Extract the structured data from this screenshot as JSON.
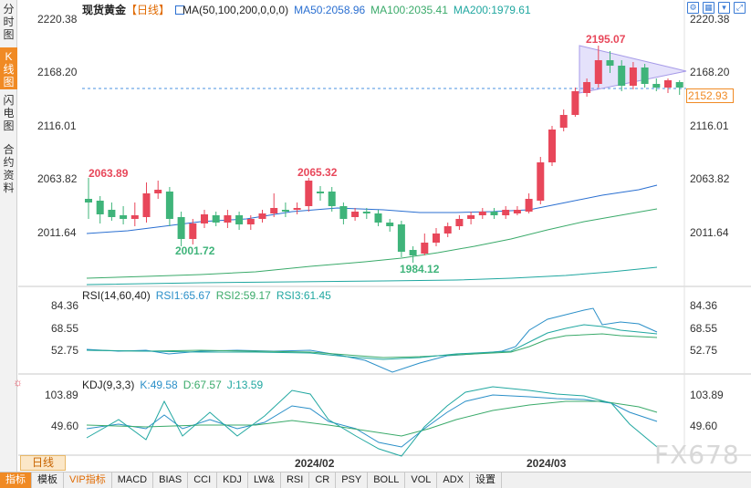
{
  "side_tabs": [
    "分时图",
    "K线图",
    "闪电图",
    "合约资料"
  ],
  "main_legend": {
    "symbol": "现货黄金",
    "period": "【日线】",
    "ma": "MA(50,100,200,0,0,0)",
    "ma50": "MA50:2058.96",
    "ma100": "MA100:2035.41",
    "ma200": "MA200:1979.61"
  },
  "price_axis": [
    "2220.38",
    "2168.20",
    "2116.01",
    "2063.82",
    "2011.64"
  ],
  "current_price": "2152.93",
  "annotations": {
    "high1": "2063.89",
    "low1": "2001.72",
    "high2": "2065.32",
    "low2": "1984.12",
    "peak": "2195.07"
  },
  "rsi_legend": {
    "title": "RSI(14,60,40)",
    "rsi1": "RSI1:65.67",
    "rsi2": "RSI2:59.17",
    "rsi3": "RSI3:61.45"
  },
  "rsi_axis": [
    "84.36",
    "68.55",
    "52.75"
  ],
  "kdj_legend": {
    "title": "KDJ(9,3,3)",
    "k": "K:49.58",
    "d": "D:67.57",
    "j": "J:13.59"
  },
  "kdj_axis": [
    "103.89",
    "49.60"
  ],
  "time_axis": [
    "2024/02",
    "2024/03"
  ],
  "period_tag": "日线",
  "bottom_tabs": [
    "指标",
    "模板",
    "VIP指标",
    "MACD",
    "BIAS",
    "CCI",
    "KDJ",
    "LW&",
    "RSI",
    "CR",
    "PSY",
    "BOLL",
    "VOL",
    "ADX",
    "设置"
  ],
  "watermark": "FX678",
  "colors": {
    "up": "#e8475a",
    "down": "#3fb47a",
    "ma50": "#2a6fd1",
    "ma100": "#3aaa6a",
    "ma200": "#20a7a0",
    "accent": "#f08a24"
  },
  "icons": [
    "settings-icon",
    "grid-icon",
    "download-icon",
    "expand-icon"
  ]
}
